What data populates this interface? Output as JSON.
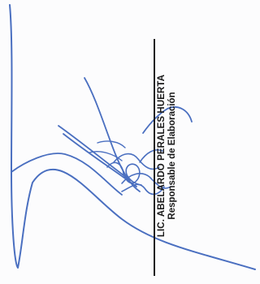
{
  "signature_block": {
    "name": "LIC. ABELARDO PERALES HUERTA",
    "role": "Responsable de Elaboración"
  },
  "colors": {
    "ink": "#4a6fc0",
    "text": "#1a1a1a"
  }
}
